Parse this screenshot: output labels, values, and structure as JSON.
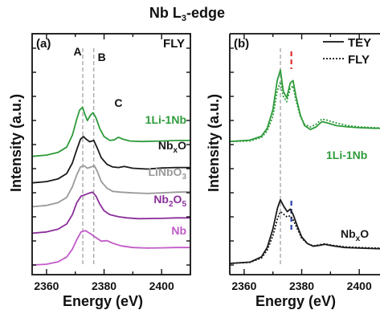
{
  "title_main": "Nb L",
  "title_sub": "3",
  "title_rest": "-edge",
  "ylabel": "Intensity (a.u.)",
  "xlabel": "Energy (eV)",
  "colors": {
    "green": "#2e9b3a",
    "black": "#1a1a1a",
    "gray": "#9a9a9a",
    "purple": "#8a2f9a",
    "magenta": "#c25ac8",
    "red": "#e0302b",
    "blue": "#2b3fa8",
    "dash_gray": "#a9a9a9"
  },
  "chart_data": [
    {
      "type": "line",
      "panel_label": "(a)",
      "mode_label": "FLY",
      "xlim": [
        2355,
        2410
      ],
      "xticks": [
        "2360",
        "2380",
        "2400"
      ],
      "guide_lines_x": [
        2372.6,
        2376.4
      ],
      "peak_labels": [
        {
          "text": "A",
          "x": 2370.8
        },
        {
          "text": "B",
          "x": 2379.2
        },
        {
          "text": "C",
          "x": 2385.0
        }
      ],
      "series": [
        {
          "name": "1Li-1Nb",
          "color_key": "green",
          "offset": 4.1,
          "points": [
            [
              2355,
              0.0
            ],
            [
              2360,
              0.05
            ],
            [
              2364,
              0.15
            ],
            [
              2367,
              0.35
            ],
            [
              2369,
              0.8
            ],
            [
              2370.5,
              1.4
            ],
            [
              2371.5,
              1.75
            ],
            [
              2372.5,
              1.85
            ],
            [
              2373.3,
              1.6
            ],
            [
              2374.2,
              1.35
            ],
            [
              2375.2,
              1.55
            ],
            [
              2376.2,
              1.65
            ],
            [
              2377.2,
              1.45
            ],
            [
              2378.5,
              1.05
            ],
            [
              2380,
              0.75
            ],
            [
              2382,
              0.6
            ],
            [
              2383.5,
              0.62
            ],
            [
              2385,
              0.72
            ],
            [
              2386.5,
              0.65
            ],
            [
              2389,
              0.58
            ],
            [
              2393,
              0.56
            ],
            [
              2400,
              0.58
            ],
            [
              2405,
              0.6
            ],
            [
              2410,
              0.6
            ]
          ]
        },
        {
          "name": "Nb_xO",
          "color_key": "black",
          "offset": 3.1,
          "points": [
            [
              2355,
              0.0
            ],
            [
              2360,
              0.05
            ],
            [
              2364,
              0.15
            ],
            [
              2367,
              0.35
            ],
            [
              2369,
              0.75
            ],
            [
              2370.5,
              1.25
            ],
            [
              2371.8,
              1.65
            ],
            [
              2372.8,
              1.75
            ],
            [
              2373.8,
              1.65
            ],
            [
              2375,
              1.55
            ],
            [
              2376.4,
              1.6
            ],
            [
              2377.5,
              1.35
            ],
            [
              2379,
              0.95
            ],
            [
              2381,
              0.7
            ],
            [
              2383,
              0.6
            ],
            [
              2385,
              0.58
            ],
            [
              2387,
              0.62
            ],
            [
              2390,
              0.55
            ],
            [
              2395,
              0.52
            ],
            [
              2400,
              0.56
            ],
            [
              2405,
              0.58
            ],
            [
              2410,
              0.58
            ]
          ]
        },
        {
          "name": "LiNbO_3",
          "color_key": "gray",
          "offset": 2.2,
          "points": [
            [
              2355,
              0.0
            ],
            [
              2360,
              0.05
            ],
            [
              2364,
              0.15
            ],
            [
              2367,
              0.35
            ],
            [
              2369,
              0.75
            ],
            [
              2370.5,
              1.2
            ],
            [
              2371.8,
              1.5
            ],
            [
              2373,
              1.55
            ],
            [
              2374.2,
              1.45
            ],
            [
              2375.5,
              1.5
            ],
            [
              2376.6,
              1.55
            ],
            [
              2377.6,
              1.35
            ],
            [
              2379,
              0.95
            ],
            [
              2381,
              0.7
            ],
            [
              2383,
              0.58
            ],
            [
              2386,
              0.55
            ],
            [
              2390,
              0.52
            ],
            [
              2395,
              0.5
            ],
            [
              2400,
              0.52
            ],
            [
              2405,
              0.55
            ],
            [
              2410,
              0.56
            ]
          ]
        },
        {
          "name": "Nb_2O_5",
          "color_key": "purple",
          "offset": 1.2,
          "points": [
            [
              2355,
              0.0
            ],
            [
              2360,
              0.05
            ],
            [
              2364,
              0.15
            ],
            [
              2367,
              0.35
            ],
            [
              2369,
              0.7
            ],
            [
              2370.5,
              1.15
            ],
            [
              2372,
              1.4
            ],
            [
              2373.3,
              1.45
            ],
            [
              2374.5,
              1.5
            ],
            [
              2376,
              1.55
            ],
            [
              2377.2,
              1.4
            ],
            [
              2378.5,
              1.1
            ],
            [
              2380,
              0.85
            ],
            [
              2382,
              0.7
            ],
            [
              2385,
              0.62
            ],
            [
              2388,
              0.58
            ],
            [
              2392,
              0.55
            ],
            [
              2400,
              0.56
            ],
            [
              2405,
              0.58
            ],
            [
              2410,
              0.58
            ]
          ]
        },
        {
          "name": "Nb",
          "color_key": "magenta",
          "offset": 0.0,
          "points": [
            [
              2355,
              0.0
            ],
            [
              2360,
              0.03
            ],
            [
              2364,
              0.12
            ],
            [
              2367,
              0.3
            ],
            [
              2369,
              0.6
            ],
            [
              2370.5,
              0.95
            ],
            [
              2372,
              1.25
            ],
            [
              2373.5,
              1.3
            ],
            [
              2375,
              1.2
            ],
            [
              2377,
              1.05
            ],
            [
              2379,
              0.9
            ],
            [
              2381,
              0.92
            ],
            [
              2383,
              0.82
            ],
            [
              2386,
              0.72
            ],
            [
              2390,
              0.66
            ],
            [
              2395,
              0.64
            ],
            [
              2400,
              0.65
            ],
            [
              2405,
              0.66
            ],
            [
              2410,
              0.66
            ]
          ]
        }
      ]
    },
    {
      "type": "line",
      "panel_label": "(b)",
      "xlim": [
        2355,
        2410
      ],
      "xticks": [
        "2360",
        "2380",
        "2400"
      ],
      "legend": [
        {
          "name": "TEY",
          "style": "solid"
        },
        {
          "name": "FLY",
          "style": "dotted"
        }
      ],
      "groups": [
        {
          "name": "1Li-1Nb",
          "color_key": "green",
          "tey": [
            [
              2355,
              4.6
            ],
            [
              2362,
              4.65
            ],
            [
              2366,
              4.8
            ],
            [
              2368,
              5.1
            ],
            [
              2370,
              5.8
            ],
            [
              2371.5,
              6.9
            ],
            [
              2372.6,
              7.3
            ],
            [
              2373.6,
              6.5
            ],
            [
              2374.8,
              6.25
            ],
            [
              2376,
              6.8
            ],
            [
              2377,
              6.9
            ],
            [
              2378,
              6.3
            ],
            [
              2379.5,
              5.6
            ],
            [
              2381,
              5.2
            ],
            [
              2383,
              5.05
            ],
            [
              2385,
              5.15
            ],
            [
              2387,
              5.35
            ],
            [
              2389,
              5.3
            ],
            [
              2392,
              5.2
            ],
            [
              2396,
              5.15
            ],
            [
              2400,
              5.12
            ],
            [
              2405,
              5.1
            ],
            [
              2410,
              5.1
            ]
          ],
          "fly": [
            [
              2355,
              4.6
            ],
            [
              2362,
              4.62
            ],
            [
              2366,
              4.75
            ],
            [
              2368,
              5.0
            ],
            [
              2370,
              5.55
            ],
            [
              2371.5,
              6.5
            ],
            [
              2372.6,
              6.85
            ],
            [
              2373.6,
              6.3
            ],
            [
              2374.8,
              6.1
            ],
            [
              2376,
              6.6
            ],
            [
              2377,
              6.7
            ],
            [
              2378,
              6.15
            ],
            [
              2379.5,
              5.55
            ],
            [
              2381,
              5.25
            ],
            [
              2383,
              5.15
            ],
            [
              2385,
              5.25
            ],
            [
              2387,
              5.45
            ],
            [
              2389,
              5.4
            ],
            [
              2392,
              5.3
            ],
            [
              2396,
              5.2
            ],
            [
              2400,
              5.15
            ],
            [
              2405,
              5.12
            ],
            [
              2410,
              5.1
            ]
          ]
        },
        {
          "name": "Nb_xO",
          "color_key": "black",
          "tey": [
            [
              2355,
              0.0
            ],
            [
              2362,
              0.05
            ],
            [
              2366,
              0.25
            ],
            [
              2368,
              0.6
            ],
            [
              2370,
              1.3
            ],
            [
              2371.6,
              2.1
            ],
            [
              2372.6,
              2.4
            ],
            [
              2373.8,
              2.15
            ],
            [
              2375,
              1.95
            ],
            [
              2376,
              2.05
            ],
            [
              2377,
              1.85
            ],
            [
              2378.5,
              1.4
            ],
            [
              2380,
              1.0
            ],
            [
              2382,
              0.75
            ],
            [
              2384,
              0.65
            ],
            [
              2386,
              0.68
            ],
            [
              2388,
              0.72
            ],
            [
              2391,
              0.66
            ],
            [
              2395,
              0.6
            ],
            [
              2400,
              0.58
            ],
            [
              2405,
              0.56
            ],
            [
              2410,
              0.55
            ]
          ],
          "fly": [
            [
              2355,
              0.0
            ],
            [
              2362,
              0.04
            ],
            [
              2366,
              0.2
            ],
            [
              2368,
              0.5
            ],
            [
              2370,
              1.05
            ],
            [
              2371.6,
              1.7
            ],
            [
              2372.6,
              1.95
            ],
            [
              2373.8,
              1.85
            ],
            [
              2375,
              1.75
            ],
            [
              2376,
              1.8
            ],
            [
              2377,
              1.65
            ],
            [
              2378.5,
              1.3
            ],
            [
              2380,
              0.95
            ],
            [
              2382,
              0.75
            ],
            [
              2384,
              0.66
            ],
            [
              2386,
              0.7
            ],
            [
              2388,
              0.74
            ],
            [
              2391,
              0.68
            ],
            [
              2395,
              0.62
            ],
            [
              2400,
              0.6
            ],
            [
              2405,
              0.58
            ],
            [
              2410,
              0.57
            ]
          ]
        }
      ],
      "guide_lines": [
        {
          "x": 2372.6,
          "color_key": "dash_gray",
          "span": "full"
        },
        {
          "x": 2376.4,
          "color_key": "red",
          "span": "top"
        },
        {
          "x": 2376.4,
          "color_key": "blue",
          "span": "bottom"
        }
      ]
    }
  ]
}
